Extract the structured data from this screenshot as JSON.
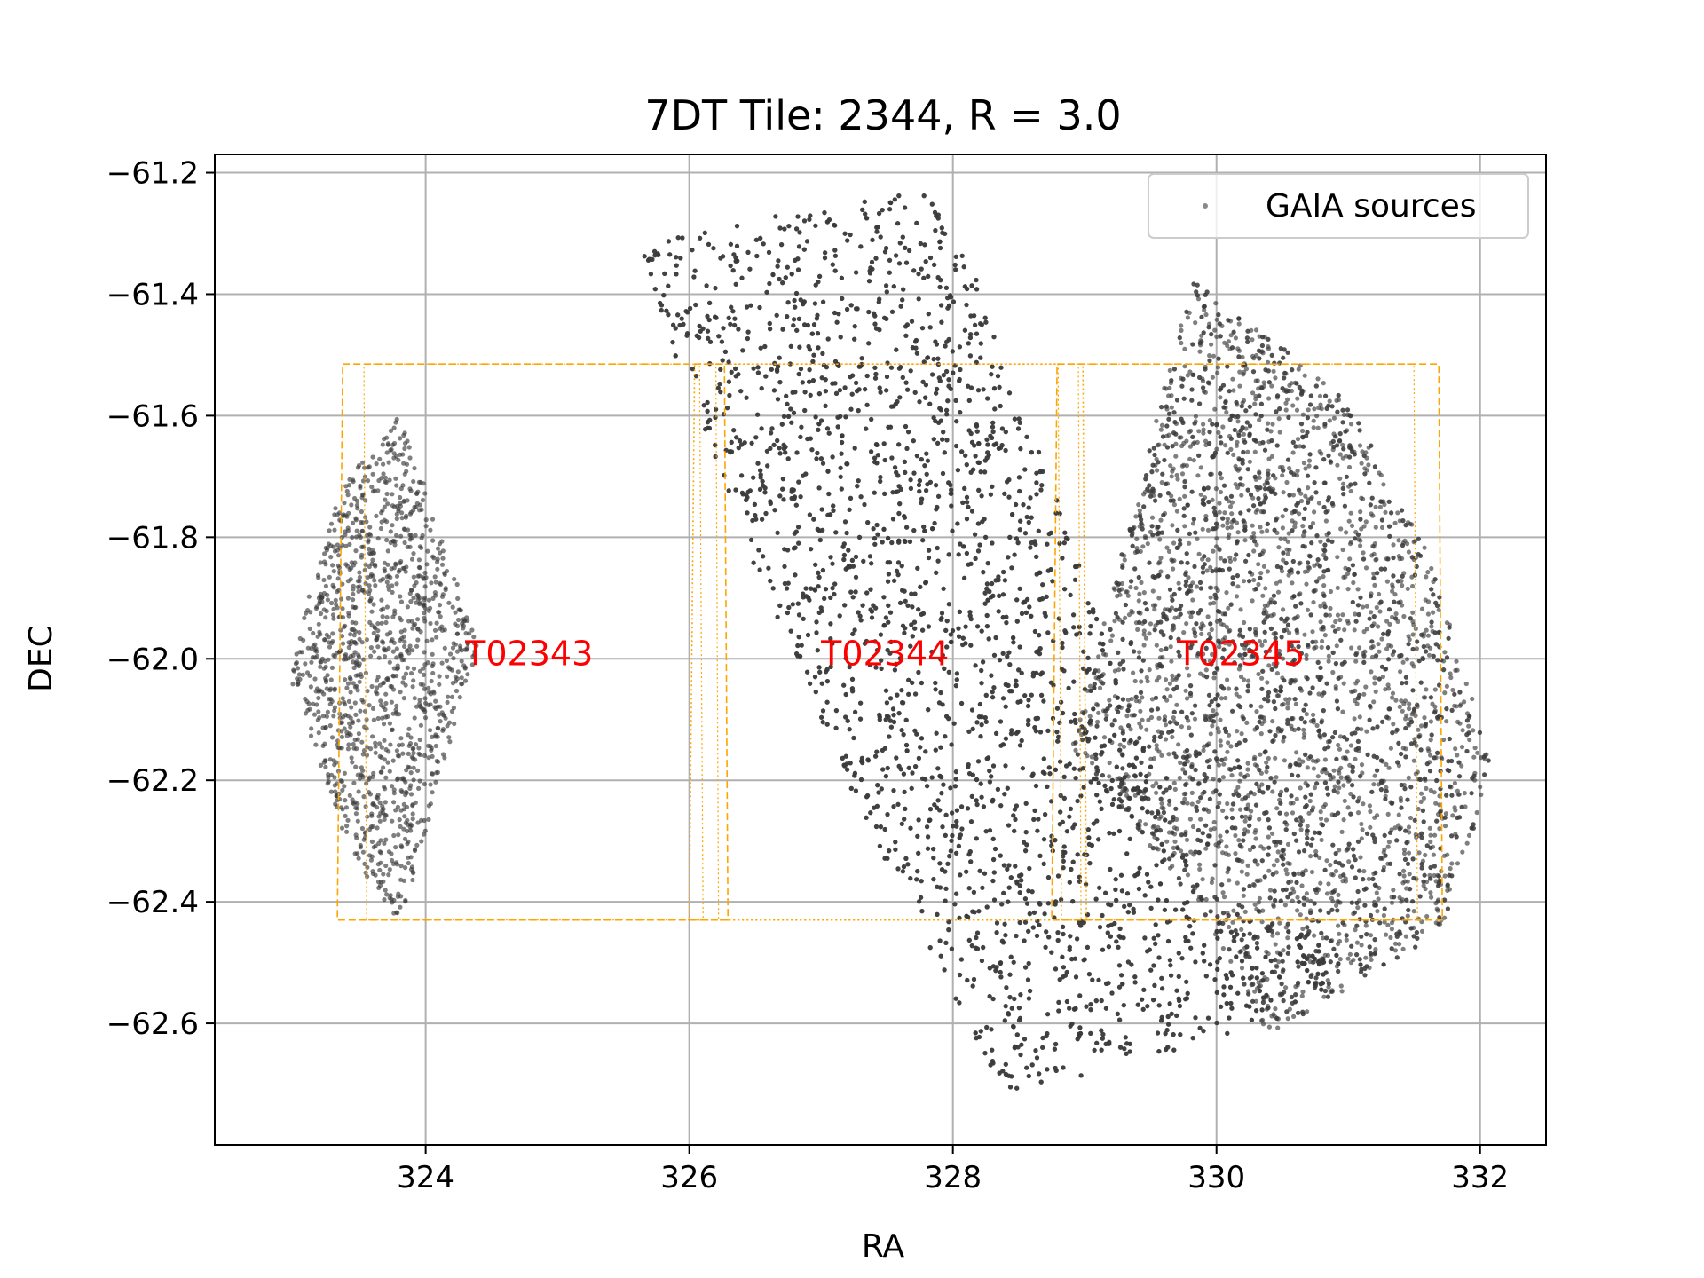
{
  "chart_data": {
    "type": "scatter",
    "title": "7DT Tile: 2344, R = 3.0",
    "xlabel": "RA",
    "ylabel": "DEC",
    "xlim": [
      322.4,
      332.5
    ],
    "ylim": [
      -62.8,
      -61.17
    ],
    "xticks": [
      324,
      326,
      328,
      330,
      332
    ],
    "xtick_labels": [
      "324",
      "326",
      "328",
      "330",
      "332"
    ],
    "yticks": [
      -61.2,
      -61.4,
      -61.6,
      -61.8,
      -62.0,
      -62.2,
      -62.4,
      -62.6
    ],
    "ytick_labels": [
      "−61.2",
      "−61.4",
      "−61.6",
      "−61.8",
      "−62.0",
      "−62.2",
      "−62.4",
      "−62.6"
    ],
    "grid": true,
    "legend": {
      "position": "upper right",
      "entries": [
        "GAIA sources"
      ]
    },
    "series": [
      {
        "name": "GAIA sources",
        "color": "#3a3a3a",
        "regions": [
          {
            "polygon": [
              [
                323.8,
                -61.6
              ],
              [
                324.05,
                -61.75
              ],
              [
                324.4,
                -61.98
              ],
              [
                324.1,
                -62.2
              ],
              [
                323.8,
                -62.45
              ],
              [
                323.4,
                -62.3
              ],
              [
                322.95,
                -62.02
              ],
              [
                323.35,
                -61.72
              ]
            ]
          },
          {
            "polygon": [
              [
                325.6,
                -61.31
              ],
              [
                327.8,
                -61.23
              ],
              [
                328.1,
                -61.33
              ],
              [
                329.9,
                -62.4
              ],
              [
                331.4,
                -62.5
              ],
              [
                330.1,
                -62.62
              ],
              [
                328.4,
                -62.72
              ],
              [
                327.4,
                -62.3
              ],
              [
                326.3,
                -61.75
              ],
              [
                325.6,
                -61.32
              ]
            ]
          },
          {
            "polygon": [
              [
                329.8,
                -61.37
              ],
              [
                330.4,
                -61.47
              ],
              [
                331.0,
                -61.58
              ],
              [
                331.6,
                -61.82
              ],
              [
                332.1,
                -62.18
              ],
              [
                331.7,
                -62.45
              ],
              [
                330.4,
                -62.62
              ],
              [
                329.9,
                -62.42
              ],
              [
                328.9,
                -62.15
              ],
              [
                329.6,
                -61.55
              ]
            ]
          }
        ]
      }
    ],
    "tile_boxes": [
      {
        "label": "T02343",
        "ra": [
          323.33,
          326.28
        ],
        "dec": [
          -62.43,
          -61.515
        ],
        "label_ra": 324.3,
        "label_dec": -61.99
      },
      {
        "label": "T02344",
        "ra": [
          326.0,
          329.0
        ],
        "dec": [
          -62.43,
          -61.515
        ],
        "label_ra": 327.0,
        "label_dec": -61.99
      },
      {
        "label": "T02345",
        "ra": [
          328.75,
          331.7
        ],
        "dec": [
          -62.43,
          -61.515
        ],
        "label_ra": 329.7,
        "label_dec": -61.99
      }
    ],
    "box_color": "#ffa500",
    "label_color": "#ff0000"
  }
}
